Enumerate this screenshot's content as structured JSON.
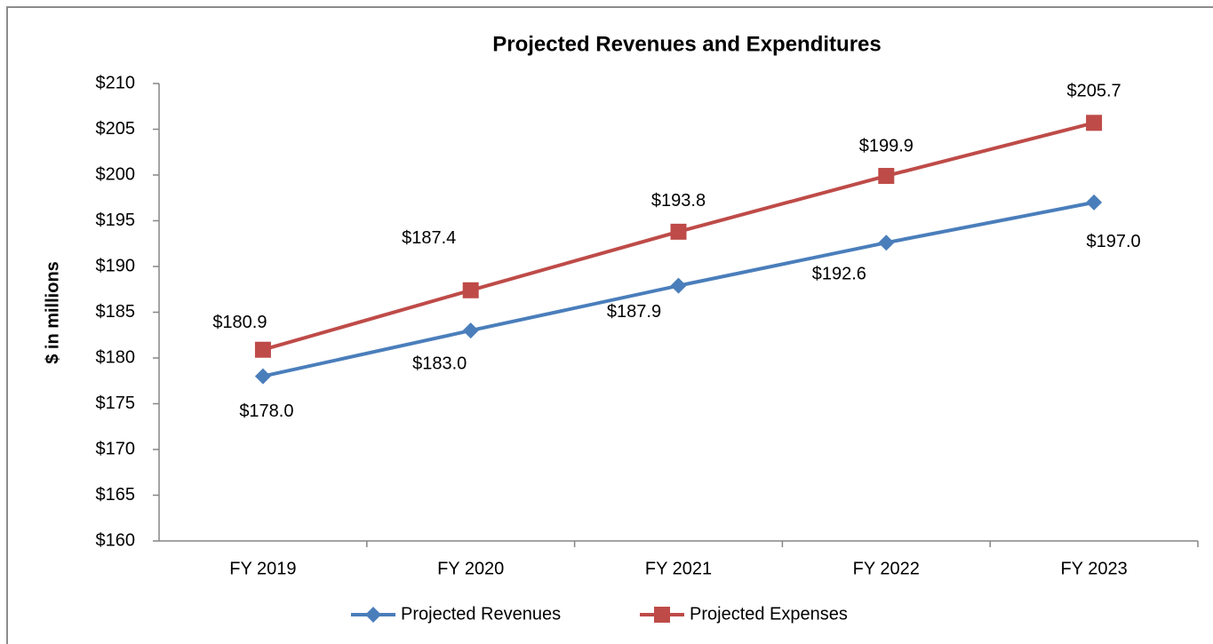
{
  "chart_data": {
    "type": "line",
    "title": "Projected Revenues and Expenditures",
    "y_label": "$ in millions",
    "categories": [
      "FY 2019",
      "FY 2020",
      "FY 2021",
      "FY 2022",
      "FY 2023"
    ],
    "series": [
      {
        "name": "Projected Revenues",
        "color": "#4a7ebb",
        "marker": "diamond",
        "values": [
          178.0,
          183.0,
          187.9,
          192.6,
          197.0
        ],
        "value_labels": [
          "$178.0",
          "$183.0",
          "$187.9",
          "$192.6",
          "$197.0"
        ]
      },
      {
        "name": "Projected Expenses",
        "color": "#be4b48",
        "marker": "square",
        "values": [
          180.9,
          187.4,
          193.8,
          199.9,
          205.7
        ],
        "value_labels": [
          "$180.9",
          "$187.4",
          "$193.8",
          "$199.9",
          "$205.7"
        ]
      }
    ],
    "ylim": [
      160,
      210
    ],
    "yticks": [
      {
        "value": 160,
        "label": "$160"
      },
      {
        "value": 165,
        "label": "$165"
      },
      {
        "value": 170,
        "label": "$170"
      },
      {
        "value": 175,
        "label": "$175"
      },
      {
        "value": 180,
        "label": "$180"
      },
      {
        "value": 185,
        "label": "$185"
      },
      {
        "value": 190,
        "label": "$190"
      },
      {
        "value": 195,
        "label": "$195"
      },
      {
        "value": 200,
        "label": "$200"
      },
      {
        "value": 205,
        "label": "$205"
      },
      {
        "value": 210,
        "label": "$210"
      }
    ],
    "grid": false,
    "legend": "bottom"
  }
}
